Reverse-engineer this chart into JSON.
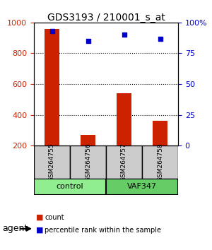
{
  "title": "GDS3193 / 210001_s_at",
  "samples": [
    "GSM264755",
    "GSM264756",
    "GSM264757",
    "GSM264758"
  ],
  "counts": [
    960,
    270,
    540,
    360
  ],
  "percentiles": [
    93,
    85,
    90,
    87
  ],
  "groups": [
    "control",
    "control",
    "VAF347",
    "VAF347"
  ],
  "group_colors": {
    "control": "#90EE90",
    "VAF347": "#3CB371"
  },
  "bar_color": "#CC2200",
  "dot_color": "#0000CC",
  "ylim_left": [
    200,
    1000
  ],
  "ylim_right": [
    0,
    100
  ],
  "yticks_left": [
    200,
    400,
    600,
    800,
    1000
  ],
  "yticks_right": [
    0,
    25,
    50,
    75,
    100
  ],
  "bg_color": "#ffffff",
  "grid_color": "#000000",
  "sample_box_color": "#cccccc",
  "legend_items": [
    "count",
    "percentile rank within the sample"
  ]
}
